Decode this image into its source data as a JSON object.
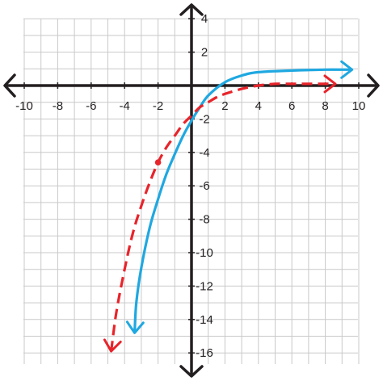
{
  "chart_data": {
    "type": "line",
    "title": "",
    "xlabel": "",
    "ylabel": "",
    "xlim": [
      -11,
      11
    ],
    "ylim": [
      -16.5,
      4.5
    ],
    "grid": true,
    "grid_step": 1,
    "x_tick_labels": [
      "-10",
      "-8",
      "-6",
      "-4",
      "-2",
      "2",
      "4",
      "6",
      "8",
      "10"
    ],
    "x_tick_values": [
      -10,
      -8,
      -6,
      -4,
      -2,
      2,
      4,
      6,
      8,
      10
    ],
    "y_tick_labels": [
      "4",
      "2",
      "-2",
      "-4",
      "-6",
      "-8",
      "-10",
      "-12",
      "-14",
      "-16"
    ],
    "y_tick_values": [
      4,
      2,
      -2,
      -4,
      -6,
      -8,
      -10,
      -12,
      -14,
      -16
    ],
    "series": [
      {
        "style": "solid",
        "color": "#1fa8e1",
        "arrow_both_ends": true,
        "x": [
          -3.4,
          -3.3,
          -3.0,
          -2.5,
          -2.0,
          -1.5,
          -1.0,
          -0.5,
          0.0,
          0.5,
          1.0,
          2.0,
          3.0,
          4.0,
          6.0,
          8.0,
          9.6
        ],
        "y": [
          -14.8,
          -13.0,
          -10.9,
          -8.5,
          -6.8,
          -5.3,
          -4.1,
          -3.0,
          -2.1,
          -1.3,
          -0.6,
          0.2,
          0.6,
          0.8,
          0.9,
          0.95,
          0.95
        ]
      },
      {
        "style": "dashed",
        "color": "#e8242b",
        "arrow_both_ends": true,
        "x": [
          -4.8,
          -4.5,
          -4.0,
          -3.5,
          -3.0,
          -2.5,
          -2.0,
          -1.5,
          -1.0,
          -0.5,
          0.0,
          0.5,
          1.0,
          1.5,
          2.0,
          3.0,
          4.0,
          5.0,
          6.0,
          7.0,
          8.6
        ],
        "y": [
          -15.9,
          -13.6,
          -11.0,
          -8.8,
          -7.2,
          -5.8,
          -4.6,
          -3.7,
          -3.0,
          -2.3,
          -1.8,
          -1.3,
          -1.0,
          -0.7,
          -0.5,
          -0.2,
          0.0,
          0.1,
          0.1,
          0.1,
          0.1
        ]
      }
    ],
    "points": [
      {
        "x": -2.0,
        "y": -4.6,
        "color": "#e8242b"
      }
    ]
  }
}
